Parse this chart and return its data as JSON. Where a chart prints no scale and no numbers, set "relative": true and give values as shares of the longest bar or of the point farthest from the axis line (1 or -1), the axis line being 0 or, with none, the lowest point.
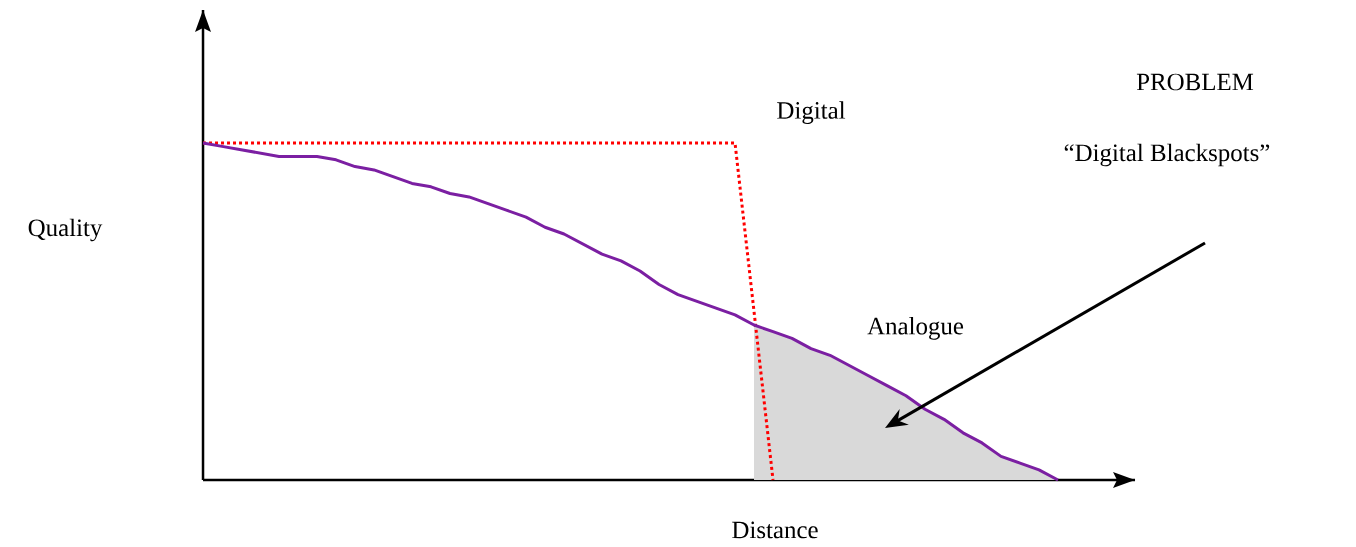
{
  "chart_data": {
    "type": "line",
    "relative": true,
    "xlabel": "Distance",
    "ylabel": "Quality",
    "annotations": [
      "PROBLEM",
      "“Digital Blackspots”"
    ],
    "categories": [
      null,
      null,
      null,
      null,
      null,
      null,
      null,
      null,
      null,
      null,
      null,
      null,
      null,
      null,
      null,
      null,
      null,
      null,
      null,
      null,
      null,
      null,
      null,
      null,
      null,
      null,
      null,
      null,
      null,
      null,
      null,
      null,
      null,
      null,
      null,
      null,
      null,
      null,
      null,
      null,
      null,
      null,
      null,
      null,
      null,
      null
    ],
    "series": [
      {
        "type": "area",
        "color": "#d9d9d9",
        "values": [
          null,
          null,
          null,
          null,
          null,
          null,
          null,
          null,
          null,
          null,
          null,
          null,
          null,
          null,
          null,
          null,
          null,
          null,
          null,
          null,
          null,
          null,
          null,
          null,
          null,
          null,
          null,
          null,
          null,
          0.46,
          0.44,
          0.42,
          0.39,
          0.37,
          0.34,
          0.31,
          0.28,
          0.25,
          0.21,
          0.18,
          0.14,
          0.11,
          0.07,
          0.05,
          0.03,
          0
        ]
      },
      {
        "name": "Digital",
        "color": "#ff0000",
        "line_style": "dotted",
        "values": [
          1,
          1,
          1,
          1,
          1,
          1,
          1,
          1,
          1,
          1,
          1,
          1,
          1,
          1,
          1,
          1,
          1,
          1,
          1,
          1,
          1,
          1,
          1,
          1,
          1,
          1,
          1,
          1,
          1,
          0.5,
          0,
          null,
          null,
          null,
          null,
          null,
          null,
          null,
          null,
          null,
          null,
          null,
          null,
          null,
          null,
          null
        ]
      },
      {
        "name": "Analogue",
        "color": "#7b1fa2",
        "line_style": "solid",
        "values": [
          1,
          0.99,
          0.98,
          0.97,
          0.96,
          0.96,
          0.96,
          0.95,
          0.93,
          0.92,
          0.9,
          0.88,
          0.87,
          0.85,
          0.84,
          0.82,
          0.8,
          0.78,
          0.75,
          0.73,
          0.7,
          0.67,
          0.65,
          0.62,
          0.58,
          0.55,
          0.53,
          0.51,
          0.49,
          0.46,
          0.44,
          0.42,
          0.39,
          0.37,
          0.34,
          0.31,
          0.28,
          0.25,
          0.21,
          0.18,
          0.14,
          0.11,
          0.07,
          0.05,
          0.03,
          0
        ]
      }
    ]
  }
}
